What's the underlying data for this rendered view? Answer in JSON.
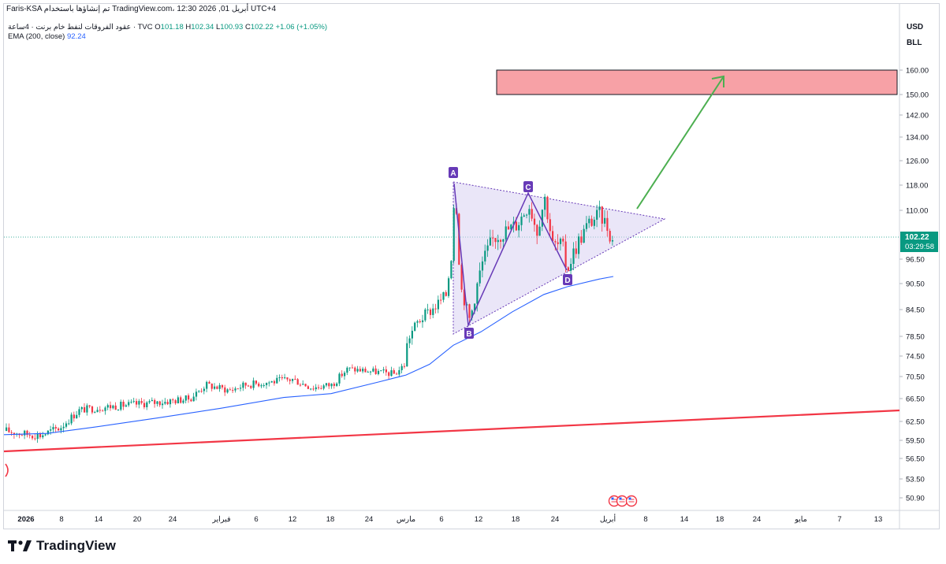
{
  "header": {
    "title_line": "Faris-KSA تم إنشاؤها باستخدام TradingView.com، أبريل 01, 2026 12:30 UTC+4",
    "symbol": "عقود الفروقات لنفط خام برنت · 4ساعة · TVC",
    "open_label": "O",
    "open": "101.18",
    "high_label": "H",
    "high": "102.34",
    "low_label": "L",
    "low": "100.93",
    "close_label": "C",
    "close": "102.22",
    "change": "+1.06 (+1.05%)",
    "ema_label": "EMA (200, close)",
    "ema_value": "92.24",
    "currency": "USD",
    "unit": "BLL"
  },
  "price_badge": {
    "price": "102.22",
    "countdown": "03:29:58"
  },
  "brand": {
    "name": "TradingView"
  },
  "colors": {
    "up": "#089981",
    "down": "#f23645",
    "ema": "#2962ff",
    "trendline": "#f23645",
    "arrow": "#4caf50",
    "target_fill": "#f7a1a6",
    "pattern": "#673ab7",
    "pattern_fill": "#d9d1f2"
  },
  "chart_data": {
    "type": "candlestick",
    "y_ticks": [
      "50.90",
      "53.50",
      "56.50",
      "59.50",
      "62.50",
      "66.50",
      "70.50",
      "74.50",
      "78.50",
      "84.50",
      "90.50",
      "96.50",
      "110.00",
      "118.00",
      "126.00",
      "134.00",
      "142.00",
      "150.00",
      "160.00"
    ],
    "x_ticks": [
      "2026",
      "8",
      "14",
      "20",
      "24",
      "فبراير",
      "6",
      "12",
      "18",
      "24",
      "مارس",
      "6",
      "12",
      "18",
      "24",
      "أبريل",
      "8",
      "14",
      "18",
      "24",
      "مايو",
      "7",
      "13"
    ],
    "pattern_points": [
      {
        "label": "A",
        "price": 119
      },
      {
        "label": "B",
        "price": 81
      },
      {
        "label": "C",
        "price": 116
      },
      {
        "label": "D",
        "price": 94
      }
    ],
    "target_zone": {
      "from": 150,
      "to": 160
    },
    "annotations": [
      "A",
      "B",
      "C",
      "D"
    ]
  }
}
